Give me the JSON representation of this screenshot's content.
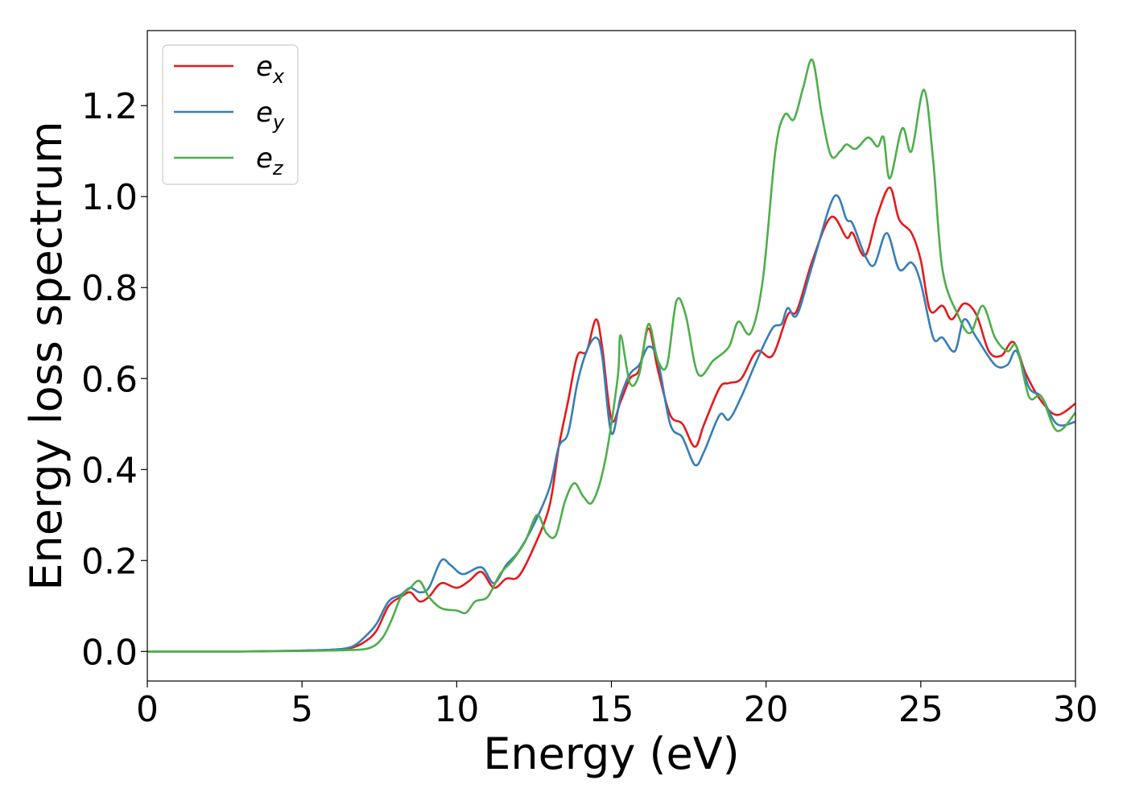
{
  "chart_data": {
    "type": "line",
    "xlabel": "Energy (eV)",
    "ylabel": "Energy loss spectrum",
    "xlim": [
      0,
      30
    ],
    "ylim": [
      -0.065,
      1.365
    ],
    "xticks": [
      "0",
      "5",
      "10",
      "15",
      "20",
      "25",
      "30"
    ],
    "yticks": [
      "0.0",
      "0.2",
      "0.4",
      "0.6",
      "0.8",
      "1.0",
      "1.2"
    ],
    "grid": false,
    "legend_position": "top-left",
    "series": [
      {
        "name": "e",
        "subscript": "x",
        "color": "#e41a1c",
        "points": [
          [
            0,
            0
          ],
          [
            3,
            0.0
          ],
          [
            5,
            0.002
          ],
          [
            6,
            0.004
          ],
          [
            6.6,
            0.008
          ],
          [
            7,
            0.02
          ],
          [
            7.4,
            0.045
          ],
          [
            7.8,
            0.1
          ],
          [
            8.2,
            0.12
          ],
          [
            8.5,
            0.13
          ],
          [
            8.8,
            0.11
          ],
          [
            9.1,
            0.12
          ],
          [
            9.5,
            0.15
          ],
          [
            10,
            0.14
          ],
          [
            10.4,
            0.155
          ],
          [
            10.8,
            0.175
          ],
          [
            11.2,
            0.14
          ],
          [
            11.6,
            0.16
          ],
          [
            12,
            0.165
          ],
          [
            12.5,
            0.23
          ],
          [
            13,
            0.32
          ],
          [
            13.3,
            0.45
          ],
          [
            13.6,
            0.55
          ],
          [
            13.9,
            0.65
          ],
          [
            14.2,
            0.66
          ],
          [
            14.5,
            0.73
          ],
          [
            14.7,
            0.67
          ],
          [
            15,
            0.51
          ],
          [
            15.3,
            0.55
          ],
          [
            15.6,
            0.6
          ],
          [
            15.9,
            0.62
          ],
          [
            16.2,
            0.71
          ],
          [
            16.5,
            0.62
          ],
          [
            16.9,
            0.52
          ],
          [
            17.3,
            0.5
          ],
          [
            17.7,
            0.45
          ],
          [
            18,
            0.5
          ],
          [
            18.5,
            0.58
          ],
          [
            18.8,
            0.59
          ],
          [
            19.2,
            0.6
          ],
          [
            19.7,
            0.66
          ],
          [
            20.2,
            0.65
          ],
          [
            20.7,
            0.74
          ],
          [
            21,
            0.75
          ],
          [
            21.5,
            0.86
          ],
          [
            22.1,
            0.955
          ],
          [
            22.6,
            0.91
          ],
          [
            22.8,
            0.92
          ],
          [
            23.2,
            0.87
          ],
          [
            23.6,
            0.96
          ],
          [
            24,
            1.02
          ],
          [
            24.3,
            0.95
          ],
          [
            24.7,
            0.92
          ],
          [
            25,
            0.86
          ],
          [
            25.3,
            0.75
          ],
          [
            25.7,
            0.76
          ],
          [
            26,
            0.73
          ],
          [
            26.4,
            0.765
          ],
          [
            26.8,
            0.74
          ],
          [
            27.2,
            0.66
          ],
          [
            27.6,
            0.65
          ],
          [
            28,
            0.68
          ],
          [
            28.4,
            0.61
          ],
          [
            28.9,
            0.55
          ],
          [
            29.4,
            0.52
          ],
          [
            30,
            0.545
          ]
        ]
      },
      {
        "name": "e",
        "subscript": "y",
        "color": "#377eb8",
        "points": [
          [
            0,
            0
          ],
          [
            3,
            0.0
          ],
          [
            5,
            0.002
          ],
          [
            6,
            0.004
          ],
          [
            6.6,
            0.01
          ],
          [
            7,
            0.03
          ],
          [
            7.4,
            0.06
          ],
          [
            7.8,
            0.11
          ],
          [
            8.2,
            0.125
          ],
          [
            8.5,
            0.14
          ],
          [
            8.8,
            0.13
          ],
          [
            9.1,
            0.14
          ],
          [
            9.5,
            0.2
          ],
          [
            9.8,
            0.19
          ],
          [
            10.2,
            0.17
          ],
          [
            10.8,
            0.185
          ],
          [
            11.2,
            0.15
          ],
          [
            11.6,
            0.19
          ],
          [
            12,
            0.22
          ],
          [
            12.5,
            0.28
          ],
          [
            13,
            0.36
          ],
          [
            13.3,
            0.45
          ],
          [
            13.6,
            0.48
          ],
          [
            13.9,
            0.59
          ],
          [
            14.2,
            0.66
          ],
          [
            14.5,
            0.69
          ],
          [
            14.7,
            0.65
          ],
          [
            15,
            0.48
          ],
          [
            15.3,
            0.56
          ],
          [
            15.6,
            0.61
          ],
          [
            15.9,
            0.63
          ],
          [
            16.2,
            0.67
          ],
          [
            16.5,
            0.64
          ],
          [
            16.9,
            0.5
          ],
          [
            17.3,
            0.47
          ],
          [
            17.7,
            0.41
          ],
          [
            18,
            0.44
          ],
          [
            18.5,
            0.52
          ],
          [
            18.8,
            0.51
          ],
          [
            19.2,
            0.56
          ],
          [
            19.7,
            0.64
          ],
          [
            20.2,
            0.71
          ],
          [
            20.5,
            0.72
          ],
          [
            20.7,
            0.755
          ],
          [
            21,
            0.74
          ],
          [
            21.5,
            0.85
          ],
          [
            22.2,
            1.0
          ],
          [
            22.6,
            0.95
          ],
          [
            22.8,
            0.94
          ],
          [
            23.2,
            0.87
          ],
          [
            23.5,
            0.85
          ],
          [
            23.9,
            0.92
          ],
          [
            24.3,
            0.84
          ],
          [
            24.7,
            0.855
          ],
          [
            25,
            0.81
          ],
          [
            25.4,
            0.69
          ],
          [
            25.7,
            0.69
          ],
          [
            26.1,
            0.66
          ],
          [
            26.4,
            0.73
          ],
          [
            26.8,
            0.69
          ],
          [
            27.4,
            0.63
          ],
          [
            27.8,
            0.63
          ],
          [
            28.1,
            0.66
          ],
          [
            28.5,
            0.58
          ],
          [
            28.9,
            0.56
          ],
          [
            29.4,
            0.5
          ],
          [
            30,
            0.505
          ]
        ]
      },
      {
        "name": "e",
        "subscript": "z",
        "color": "#4daf4a",
        "points": [
          [
            0,
            0
          ],
          [
            3,
            0.0
          ],
          [
            5,
            0.001
          ],
          [
            6.5,
            0.003
          ],
          [
            7.2,
            0.008
          ],
          [
            7.6,
            0.03
          ],
          [
            7.9,
            0.07
          ],
          [
            8.2,
            0.12
          ],
          [
            8.5,
            0.14
          ],
          [
            8.8,
            0.155
          ],
          [
            9.1,
            0.12
          ],
          [
            9.5,
            0.095
          ],
          [
            10,
            0.09
          ],
          [
            10.3,
            0.085
          ],
          [
            10.6,
            0.11
          ],
          [
            11,
            0.12
          ],
          [
            11.4,
            0.17
          ],
          [
            11.8,
            0.2
          ],
          [
            12.2,
            0.24
          ],
          [
            12.6,
            0.3
          ],
          [
            12.9,
            0.26
          ],
          [
            13.2,
            0.255
          ],
          [
            13.5,
            0.33
          ],
          [
            13.8,
            0.37
          ],
          [
            14.1,
            0.34
          ],
          [
            14.4,
            0.33
          ],
          [
            14.8,
            0.42
          ],
          [
            15.2,
            0.6
          ],
          [
            15.3,
            0.695
          ],
          [
            15.6,
            0.59
          ],
          [
            15.9,
            0.61
          ],
          [
            16.2,
            0.72
          ],
          [
            16.5,
            0.64
          ],
          [
            16.8,
            0.63
          ],
          [
            17.1,
            0.77
          ],
          [
            17.4,
            0.74
          ],
          [
            17.8,
            0.61
          ],
          [
            18.3,
            0.64
          ],
          [
            18.8,
            0.67
          ],
          [
            19.1,
            0.725
          ],
          [
            19.5,
            0.7
          ],
          [
            19.9,
            0.82
          ],
          [
            20.3,
            1.1
          ],
          [
            20.6,
            1.18
          ],
          [
            20.9,
            1.17
          ],
          [
            21.2,
            1.24
          ],
          [
            21.5,
            1.3
          ],
          [
            21.8,
            1.18
          ],
          [
            22.1,
            1.09
          ],
          [
            22.4,
            1.1
          ],
          [
            22.6,
            1.115
          ],
          [
            22.9,
            1.105
          ],
          [
            23.3,
            1.13
          ],
          [
            23.6,
            1.11
          ],
          [
            23.8,
            1.13
          ],
          [
            24,
            1.04
          ],
          [
            24.4,
            1.15
          ],
          [
            24.7,
            1.1
          ],
          [
            25.1,
            1.235
          ],
          [
            25.4,
            1.08
          ],
          [
            25.7,
            0.84
          ],
          [
            26.2,
            0.74
          ],
          [
            26.6,
            0.7
          ],
          [
            27,
            0.76
          ],
          [
            27.4,
            0.69
          ],
          [
            27.8,
            0.66
          ],
          [
            28.1,
            0.67
          ],
          [
            28.5,
            0.56
          ],
          [
            28.9,
            0.56
          ],
          [
            29.4,
            0.485
          ],
          [
            30,
            0.525
          ]
        ]
      }
    ]
  }
}
